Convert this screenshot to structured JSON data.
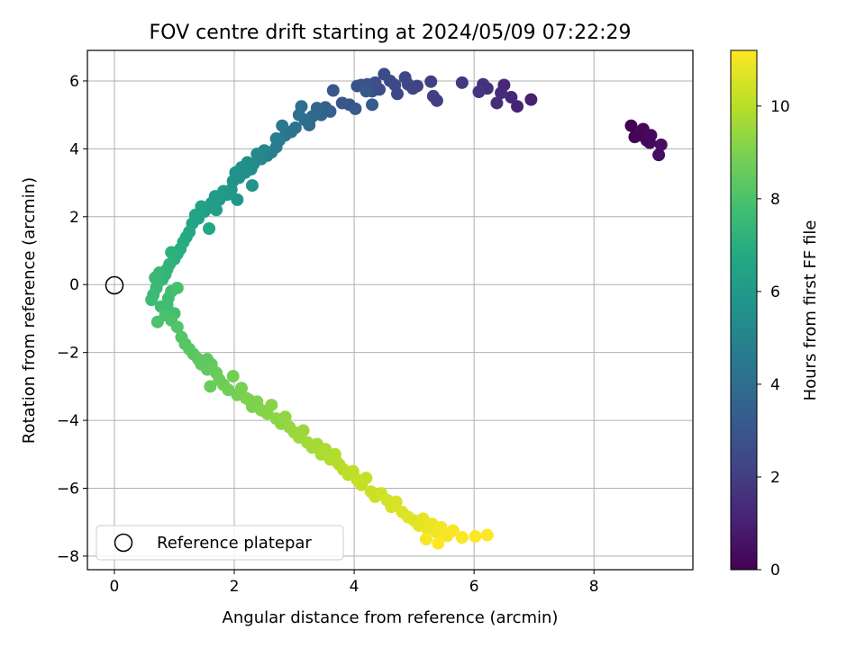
{
  "chart_data": {
    "type": "scatter",
    "title": "FOV centre drift starting at 2024/05/09 07:22:29",
    "xlabel": "Angular distance from reference (arcmin)",
    "ylabel": "Rotation from reference (arcmin)",
    "xlim": [
      -0.45,
      9.65
    ],
    "ylim": [
      -8.4,
      6.9
    ],
    "xticks": [
      0,
      2,
      4,
      6,
      8
    ],
    "yticks": [
      -8,
      -6,
      -4,
      -2,
      0,
      2,
      4,
      6
    ],
    "grid": true,
    "legend": {
      "position": "lower-left",
      "entries": [
        "Reference platepar"
      ]
    },
    "colorbar": {
      "label": "Hours from first FF file",
      "colormap": "viridis",
      "range": [
        0,
        11.2
      ],
      "ticks": [
        0,
        2,
        4,
        6,
        8,
        10
      ]
    },
    "reference_point": {
      "x": 0,
      "y": 0
    },
    "series": [
      {
        "points": [
          [
            8.62,
            4.68,
            0.0
          ],
          [
            8.68,
            4.35,
            0.05
          ],
          [
            8.74,
            4.4,
            0.1
          ],
          [
            8.82,
            4.58,
            0.15
          ],
          [
            8.88,
            4.25,
            0.2
          ],
          [
            8.93,
            4.18,
            0.25
          ],
          [
            8.95,
            4.4,
            0.3
          ],
          [
            9.08,
            3.82,
            0.4
          ],
          [
            9.12,
            4.12,
            0.45
          ],
          [
            6.95,
            5.45,
            1.0
          ],
          [
            6.72,
            5.25,
            1.1
          ],
          [
            6.62,
            5.52,
            1.2
          ],
          [
            6.5,
            5.88,
            1.3
          ],
          [
            6.45,
            5.65,
            1.35
          ],
          [
            6.38,
            5.35,
            1.45
          ],
          [
            6.22,
            5.78,
            1.55
          ],
          [
            6.15,
            5.9,
            1.6
          ],
          [
            6.08,
            5.68,
            1.7
          ],
          [
            5.8,
            5.95,
            1.85
          ],
          [
            5.38,
            5.42,
            2.0
          ],
          [
            5.32,
            5.55,
            2.05
          ],
          [
            5.28,
            5.98,
            2.1
          ],
          [
            5.05,
            5.85,
            2.2
          ],
          [
            4.98,
            5.78,
            2.25
          ],
          [
            4.9,
            5.9,
            2.3
          ],
          [
            4.85,
            6.1,
            2.35
          ],
          [
            4.72,
            5.62,
            2.4
          ],
          [
            4.68,
            5.88,
            2.45
          ],
          [
            4.6,
            6.0,
            2.5
          ],
          [
            4.5,
            6.2,
            2.55
          ],
          [
            4.42,
            5.75,
            2.6
          ],
          [
            4.35,
            5.95,
            2.65
          ],
          [
            4.3,
            5.7,
            2.7
          ],
          [
            4.22,
            5.9,
            2.75
          ],
          [
            4.12,
            5.88,
            2.8
          ],
          [
            4.05,
            5.85,
            2.85
          ],
          [
            3.92,
            5.3,
            2.9
          ],
          [
            3.8,
            5.35,
            3.0
          ],
          [
            3.65,
            5.72,
            3.05
          ],
          [
            4.02,
            5.18,
            3.1
          ],
          [
            4.2,
            5.7,
            3.15
          ],
          [
            4.3,
            5.3,
            3.2
          ],
          [
            3.6,
            5.1,
            3.4
          ],
          [
            3.52,
            5.22,
            3.5
          ],
          [
            3.45,
            5.0,
            3.6
          ],
          [
            3.38,
            5.2,
            3.7
          ],
          [
            3.3,
            4.95,
            3.8
          ],
          [
            3.25,
            4.7,
            3.9
          ],
          [
            3.18,
            4.85,
            4.0
          ],
          [
            3.12,
            5.25,
            4.05
          ],
          [
            3.08,
            5.0,
            4.1
          ],
          [
            3.02,
            4.62,
            4.2
          ],
          [
            2.95,
            4.5,
            4.3
          ],
          [
            2.85,
            4.4,
            4.4
          ],
          [
            2.8,
            4.68,
            4.5
          ],
          [
            2.75,
            4.25,
            4.6
          ],
          [
            2.7,
            4.05,
            4.7
          ],
          [
            2.62,
            3.9,
            4.8
          ],
          [
            2.55,
            3.8,
            4.9
          ],
          [
            2.5,
            3.95,
            5.0
          ],
          [
            2.45,
            3.7,
            5.1
          ],
          [
            2.38,
            3.85,
            5.2
          ],
          [
            2.32,
            3.55,
            5.3
          ],
          [
            2.28,
            3.4,
            5.4
          ],
          [
            2.22,
            3.6,
            5.45
          ],
          [
            2.18,
            3.3,
            5.5
          ],
          [
            2.12,
            3.45,
            5.55
          ],
          [
            2.08,
            3.15,
            5.6
          ],
          [
            2.02,
            3.3,
            5.65
          ],
          [
            1.98,
            3.05,
            5.7
          ],
          [
            2.3,
            2.92,
            5.75
          ],
          [
            2.05,
            2.5,
            5.8
          ],
          [
            1.95,
            2.8,
            5.9
          ],
          [
            1.88,
            2.65,
            6.0
          ],
          [
            1.82,
            2.75,
            6.05
          ],
          [
            1.75,
            2.5,
            6.1
          ],
          [
            1.68,
            2.6,
            6.15
          ],
          [
            1.62,
            2.4,
            6.2
          ],
          [
            1.55,
            2.25,
            6.3
          ],
          [
            1.5,
            2.15,
            6.35
          ],
          [
            1.45,
            2.3,
            6.4
          ],
          [
            1.4,
            1.95,
            6.5
          ],
          [
            1.35,
            2.05,
            6.55
          ],
          [
            1.3,
            1.8,
            6.6
          ],
          [
            1.58,
            1.65,
            6.7
          ],
          [
            1.25,
            1.55,
            6.75
          ],
          [
            1.2,
            1.4,
            6.8
          ],
          [
            1.15,
            1.25,
            6.9
          ],
          [
            1.1,
            1.05,
            7.0
          ],
          [
            1.05,
            0.9,
            7.05
          ],
          [
            1.0,
            0.75,
            7.1
          ],
          [
            0.95,
            0.95,
            7.15
          ],
          [
            0.92,
            0.6,
            7.2
          ],
          [
            0.88,
            0.45,
            7.25
          ],
          [
            0.85,
            0.3,
            7.3
          ],
          [
            0.8,
            0.15,
            7.35
          ],
          [
            0.75,
            0.35,
            7.4
          ],
          [
            0.72,
            0.05,
            7.45
          ],
          [
            0.7,
            -0.1,
            7.5
          ],
          [
            0.68,
            0.2,
            7.55
          ],
          [
            0.65,
            -0.3,
            7.6
          ],
          [
            0.62,
            -0.45,
            7.65
          ],
          [
            0.78,
            -0.65,
            7.7
          ],
          [
            0.9,
            -0.4,
            7.75
          ],
          [
            0.95,
            -0.2,
            7.8
          ],
          [
            1.0,
            -0.85,
            7.85
          ],
          [
            1.05,
            -0.1,
            7.9
          ],
          [
            0.85,
            -0.9,
            7.95
          ],
          [
            0.72,
            -1.1,
            8.0
          ],
          [
            0.95,
            -1.05,
            8.05
          ],
          [
            1.05,
            -1.25,
            8.1
          ],
          [
            1.12,
            -1.55,
            8.15
          ],
          [
            1.18,
            -1.75,
            8.2
          ],
          [
            1.25,
            -1.9,
            8.25
          ],
          [
            1.32,
            -2.05,
            8.3
          ],
          [
            1.4,
            -2.2,
            8.35
          ],
          [
            1.45,
            -2.35,
            8.4
          ],
          [
            1.55,
            -2.5,
            8.45
          ],
          [
            1.62,
            -2.35,
            8.5
          ],
          [
            1.7,
            -2.6,
            8.55
          ],
          [
            1.6,
            -3.0,
            8.6
          ],
          [
            1.75,
            -2.8,
            8.65
          ],
          [
            1.82,
            -2.95,
            8.7
          ],
          [
            1.9,
            -3.1,
            8.75
          ],
          [
            1.98,
            -2.7,
            8.8
          ],
          [
            2.05,
            -3.25,
            8.85
          ],
          [
            2.12,
            -3.05,
            8.9
          ],
          [
            2.2,
            -3.35,
            8.95
          ],
          [
            2.3,
            -3.6,
            9.0
          ],
          [
            2.38,
            -3.45,
            9.05
          ],
          [
            2.45,
            -3.7,
            9.1
          ],
          [
            2.55,
            -3.8,
            9.15
          ],
          [
            2.62,
            -3.55,
            9.2
          ],
          [
            2.7,
            -3.95,
            9.25
          ],
          [
            2.78,
            -4.1,
            9.3
          ],
          [
            2.85,
            -3.9,
            9.35
          ],
          [
            2.92,
            -4.2,
            9.4
          ],
          [
            3.0,
            -4.35,
            9.45
          ],
          [
            3.08,
            -4.5,
            9.5
          ],
          [
            3.15,
            -4.3,
            9.55
          ],
          [
            3.22,
            -4.65,
            9.6
          ],
          [
            3.3,
            -4.8,
            9.65
          ],
          [
            3.38,
            -4.7,
            9.7
          ],
          [
            3.45,
            -5.0,
            9.75
          ],
          [
            3.52,
            -4.85,
            9.8
          ],
          [
            3.6,
            -5.15,
            9.85
          ],
          [
            3.68,
            -5.0,
            9.9
          ],
          [
            3.75,
            -5.3,
            9.95
          ],
          [
            3.82,
            -5.45,
            10.0
          ],
          [
            3.9,
            -5.6,
            10.05
          ],
          [
            3.98,
            -5.5,
            10.1
          ],
          [
            4.05,
            -5.75,
            10.15
          ],
          [
            4.12,
            -5.9,
            10.2
          ],
          [
            4.2,
            -5.7,
            10.25
          ],
          [
            4.28,
            -6.1,
            10.3
          ],
          [
            4.35,
            -6.25,
            10.35
          ],
          [
            4.45,
            -6.15,
            10.4
          ],
          [
            4.55,
            -6.35,
            10.45
          ],
          [
            4.62,
            -6.55,
            10.5
          ],
          [
            4.7,
            -6.4,
            10.55
          ],
          [
            4.8,
            -6.7,
            10.6
          ],
          [
            4.9,
            -6.85,
            10.65
          ],
          [
            5.0,
            -6.95,
            10.7
          ],
          [
            5.08,
            -7.1,
            10.75
          ],
          [
            5.15,
            -6.9,
            10.8
          ],
          [
            5.22,
            -7.2,
            10.85
          ],
          [
            5.3,
            -7.05,
            10.9
          ],
          [
            5.38,
            -7.3,
            10.95
          ],
          [
            5.45,
            -7.15,
            11.0
          ],
          [
            5.55,
            -7.4,
            11.05
          ],
          [
            5.65,
            -7.25,
            11.1
          ],
          [
            5.8,
            -7.45,
            11.15
          ],
          [
            6.02,
            -7.42,
            11.18
          ],
          [
            6.22,
            -7.38,
            11.2
          ],
          [
            5.4,
            -7.62,
            11.2
          ],
          [
            5.2,
            -7.5,
            11.1
          ],
          [
            3.7,
            -5.2,
            9.9
          ],
          [
            2.25,
            -3.4,
            9.0
          ],
          [
            1.55,
            -2.2,
            8.4
          ],
          [
            0.88,
            -0.6,
            7.75
          ],
          [
            1.7,
            2.2,
            6.2
          ],
          [
            2.7,
            4.3,
            4.7
          ]
        ]
      }
    ]
  }
}
